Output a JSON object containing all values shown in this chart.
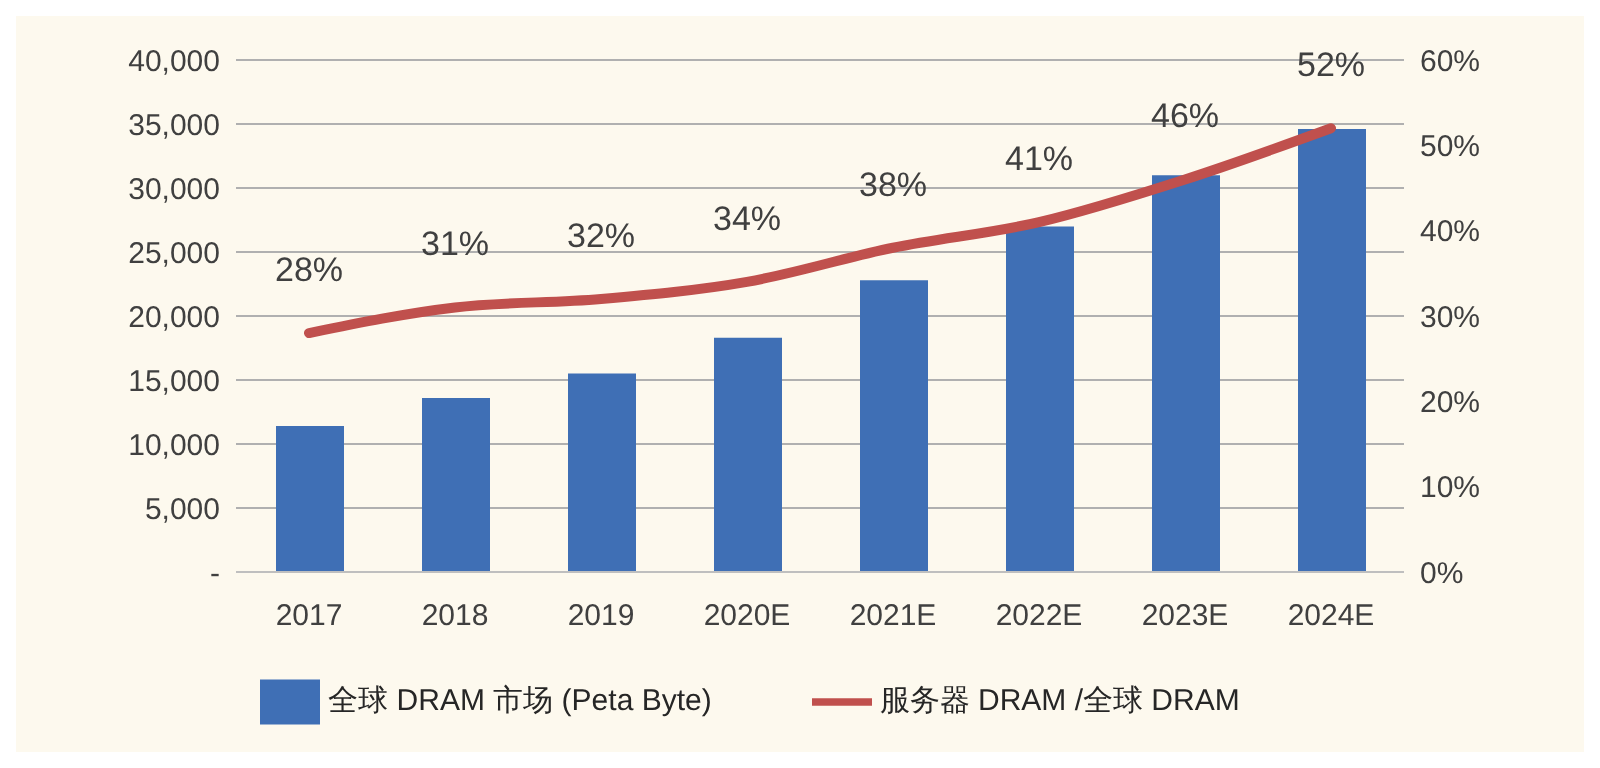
{
  "chart_data": {
    "type": "bar",
    "categories": [
      "2017",
      "2018",
      "2019",
      "2020E",
      "2021E",
      "2022E",
      "2023E",
      "2024E"
    ],
    "series": [
      {
        "name": "全球 DRAM 市场 (Peta Byte)",
        "color": "#3f6fb5",
        "values": [
          11400,
          13600,
          15500,
          18300,
          22800,
          27000,
          31000,
          34600
        ]
      },
      {
        "name": "服务器 DRAM /全球 DRAM",
        "type": "line",
        "axis": "y2",
        "color": "#c0504d",
        "values": [
          28,
          31,
          32,
          34,
          38,
          41,
          46,
          52
        ],
        "value_labels": [
          "28%",
          "31%",
          "32%",
          "34%",
          "38%",
          "41%",
          "46%",
          "52%"
        ]
      }
    ],
    "ylim": [
      0,
      40000
    ],
    "yticks": [
      {
        "value": 0,
        "label": "-"
      },
      {
        "value": 5000,
        "label": "5,000"
      },
      {
        "value": 10000,
        "label": "10,000"
      },
      {
        "value": 15000,
        "label": "15,000"
      },
      {
        "value": 20000,
        "label": "20,000"
      },
      {
        "value": 25000,
        "label": "25,000"
      },
      {
        "value": 30000,
        "label": "30,000"
      },
      {
        "value": 35000,
        "label": "35,000"
      },
      {
        "value": 40000,
        "label": "40,000"
      }
    ],
    "y2lim": [
      0,
      60
    ],
    "y2ticks": [
      {
        "value": 0,
        "label": "0%"
      },
      {
        "value": 10,
        "label": "10%"
      },
      {
        "value": 20,
        "label": "20%"
      },
      {
        "value": 30,
        "label": "30%"
      },
      {
        "value": 40,
        "label": "40%"
      },
      {
        "value": 50,
        "label": "50%"
      },
      {
        "value": 60,
        "label": "60%"
      }
    ],
    "grid": "y",
    "legend": "bottom",
    "marker": "none",
    "line_style": "solid"
  }
}
